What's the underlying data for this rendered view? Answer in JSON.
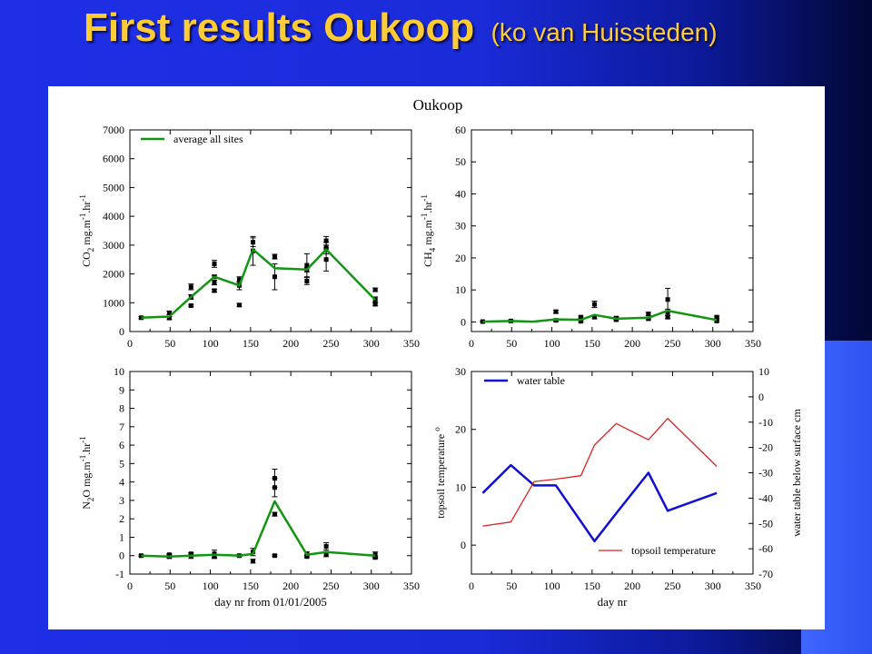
{
  "slide": {
    "title": "First results Oukoop",
    "subtitle": "(ko van Huissteden)"
  },
  "figure": {
    "title": "Oukoop"
  },
  "colors": {
    "average_line": "#119611",
    "water_table": "#1010d0",
    "topsoil_temp": "#dd2222",
    "markers": "#000000"
  },
  "chart_data": [
    {
      "id": "co2",
      "type": "line",
      "ylabel": "CO2 mg.m-1.hr-1",
      "ylabel_parts": {
        "pre": "CO",
        "sub": "2",
        "mid1": " mg.m",
        "sup1": "-1",
        "mid2": ".hr",
        "sup2": "-1"
      },
      "xlim": [
        0,
        350
      ],
      "ylim": [
        0,
        7000
      ],
      "xticks": [
        0,
        50,
        100,
        150,
        200,
        250,
        300,
        350
      ],
      "yticks": [
        0,
        1000,
        2000,
        3000,
        4000,
        5000,
        6000,
        7000
      ],
      "legend": {
        "position": "top-left",
        "label": "average all sites"
      },
      "series": [
        {
          "name": "average all sites",
          "x": [
            14,
            49,
            76,
            105,
            136,
            153,
            180,
            220,
            244,
            305
          ],
          "y": [
            480,
            520,
            1200,
            1900,
            1600,
            2850,
            2200,
            2150,
            2850,
            1100
          ]
        }
      ],
      "points": [
        {
          "x": 14,
          "y": 480,
          "err": 40
        },
        {
          "x": 49,
          "y": 470,
          "err": 50
        },
        {
          "x": 49,
          "y": 650,
          "err": 60
        },
        {
          "x": 76,
          "y": 1200,
          "err": 80
        },
        {
          "x": 76,
          "y": 1550,
          "err": 100
        },
        {
          "x": 76,
          "y": 900,
          "err": 40
        },
        {
          "x": 105,
          "y": 1900,
          "err": 60
        },
        {
          "x": 105,
          "y": 2350,
          "err": 120
        },
        {
          "x": 105,
          "y": 1700,
          "err": 80
        },
        {
          "x": 105,
          "y": 1420,
          "err": 50
        },
        {
          "x": 136,
          "y": 1800,
          "err": 100
        },
        {
          "x": 136,
          "y": 920,
          "err": 50
        },
        {
          "x": 136,
          "y": 1600,
          "err": 150
        },
        {
          "x": 153,
          "y": 3100,
          "err": 150
        },
        {
          "x": 153,
          "y": 2800,
          "err": 500
        },
        {
          "x": 180,
          "y": 2600,
          "err": 80
        },
        {
          "x": 180,
          "y": 1900,
          "err": 450
        },
        {
          "x": 220,
          "y": 2300,
          "err": 400
        },
        {
          "x": 220,
          "y": 1750,
          "err": 120
        },
        {
          "x": 220,
          "y": 2150,
          "err": 80
        },
        {
          "x": 244,
          "y": 3150,
          "err": 150
        },
        {
          "x": 244,
          "y": 2900,
          "err": 200
        },
        {
          "x": 244,
          "y": 2500,
          "err": 400
        },
        {
          "x": 305,
          "y": 1450,
          "err": 60
        },
        {
          "x": 305,
          "y": 1100,
          "err": 100
        },
        {
          "x": 305,
          "y": 950,
          "err": 60
        }
      ]
    },
    {
      "id": "ch4",
      "type": "line",
      "ylabel": "CH4 mg.m-1.hr-1",
      "ylabel_parts": {
        "pre": "CH",
        "sub": "4",
        "mid1": " mg.m",
        "sup1": "-1",
        "mid2": ".hr",
        "sup2": "-1"
      },
      "xlim": [
        0,
        350
      ],
      "ylim": [
        -3,
        60
      ],
      "xticks": [
        0,
        50,
        100,
        150,
        200,
        250,
        300,
        350
      ],
      "yticks": [
        0,
        10,
        20,
        30,
        40,
        50,
        60
      ],
      "series": [
        {
          "name": "average all sites",
          "x": [
            14,
            49,
            76,
            105,
            136,
            153,
            180,
            220,
            244,
            305
          ],
          "y": [
            0.1,
            0.3,
            0.1,
            0.8,
            0.7,
            2.2,
            1.0,
            1.3,
            3.5,
            0.6
          ]
        }
      ],
      "points": [
        {
          "x": 14,
          "y": 0.1,
          "err": 0.2
        },
        {
          "x": 49,
          "y": 0.3,
          "err": 0.3
        },
        {
          "x": 105,
          "y": 3.2,
          "err": 0.5
        },
        {
          "x": 105,
          "y": 0.5,
          "err": 0.3
        },
        {
          "x": 136,
          "y": 1.5,
          "err": 0.3
        },
        {
          "x": 136,
          "y": 0.2,
          "err": 0.3
        },
        {
          "x": 153,
          "y": 5.5,
          "err": 1.0
        },
        {
          "x": 153,
          "y": 1.5,
          "err": 0.5
        },
        {
          "x": 180,
          "y": 1.2,
          "err": 0.4
        },
        {
          "x": 180,
          "y": 0.7,
          "err": 0.3
        },
        {
          "x": 220,
          "y": 2.5,
          "err": 0.5
        },
        {
          "x": 220,
          "y": 1.0,
          "err": 0.3
        },
        {
          "x": 244,
          "y": 7.0,
          "err": 3.5
        },
        {
          "x": 244,
          "y": 3.0,
          "err": 1.0
        },
        {
          "x": 244,
          "y": 1.5,
          "err": 0.5
        },
        {
          "x": 305,
          "y": 1.5,
          "err": 0.3
        },
        {
          "x": 305,
          "y": 0.3,
          "err": 0.3
        }
      ]
    },
    {
      "id": "n2o",
      "type": "line",
      "xlabel": "day nr from 01/01/2005",
      "ylabel": "N2O mg.m-1.hr-1",
      "ylabel_parts": {
        "pre": "N",
        "sub": "2",
        "mid0": "O",
        "mid1": " mg.m",
        "sup1": "-1",
        "mid2": ".hr",
        "sup2": "-1"
      },
      "xlim": [
        0,
        350
      ],
      "ylim": [
        -1,
        10
      ],
      "xticks": [
        0,
        50,
        100,
        150,
        200,
        250,
        300,
        350
      ],
      "yticks": [
        -1,
        0,
        1,
        2,
        3,
        4,
        5,
        6,
        7,
        8,
        9,
        10
      ],
      "series": [
        {
          "name": "average all sites",
          "x": [
            14,
            49,
            76,
            105,
            136,
            153,
            180,
            220,
            244,
            305
          ],
          "y": [
            0.0,
            -0.05,
            0.0,
            0.05,
            0.0,
            0.1,
            2.95,
            0.05,
            0.2,
            0.0
          ]
        }
      ],
      "points": [
        {
          "x": 14,
          "y": 0.0,
          "err": 0.05
        },
        {
          "x": 49,
          "y": -0.05,
          "err": 0.1
        },
        {
          "x": 49,
          "y": 0.05,
          "err": 0.05
        },
        {
          "x": 76,
          "y": 0.0,
          "err": 0.15
        },
        {
          "x": 76,
          "y": 0.1,
          "err": 0.05
        },
        {
          "x": 105,
          "y": 0.1,
          "err": 0.2
        },
        {
          "x": 105,
          "y": -0.05,
          "err": 0.1
        },
        {
          "x": 136,
          "y": 0.0,
          "err": 0.05
        },
        {
          "x": 153,
          "y": 0.2,
          "err": 0.2
        },
        {
          "x": 153,
          "y": -0.3,
          "err": 0.1
        },
        {
          "x": 180,
          "y": 3.7,
          "err": 0.5
        },
        {
          "x": 180,
          "y": 4.2,
          "err": 0.5
        },
        {
          "x": 180,
          "y": 2.25,
          "err": 0.1
        },
        {
          "x": 180,
          "y": 0.0,
          "err": 0.05
        },
        {
          "x": 220,
          "y": 0.1,
          "err": 0.1
        },
        {
          "x": 220,
          "y": -0.05,
          "err": 0.05
        },
        {
          "x": 244,
          "y": 0.5,
          "err": 0.2
        },
        {
          "x": 244,
          "y": 0.05,
          "err": 0.1
        },
        {
          "x": 305,
          "y": 0.05,
          "err": 0.15
        },
        {
          "x": 305,
          "y": -0.1,
          "err": 0.05
        }
      ]
    },
    {
      "id": "temp_water",
      "type": "line",
      "xlabel": "day nr",
      "ylabel": "topsoil temperature °",
      "ylabel_parts": {
        "pre": "topsoil temperature ",
        "sup1": "o"
      },
      "y2label": "water table below surface cm",
      "xlim": [
        0,
        350
      ],
      "ylim": [
        -5,
        30
      ],
      "y2lim": [
        -70,
        10
      ],
      "xticks": [
        0,
        50,
        100,
        150,
        200,
        250,
        300,
        350
      ],
      "yticks": [
        0,
        10,
        20,
        30
      ],
      "y2ticks": [
        10,
        0,
        -10,
        -20,
        -30,
        -40,
        -50,
        -60,
        -70
      ],
      "legend": {
        "top_label": "water table",
        "bottom_label": "topsoil temperature"
      },
      "series": [
        {
          "name": "water table",
          "axis": "right",
          "x": [
            14,
            49,
            78,
            105,
            153,
            180,
            220,
            244,
            305
          ],
          "y": [
            -38,
            -27,
            -35,
            -35,
            -57,
            -46,
            -30,
            -45,
            -38
          ]
        },
        {
          "name": "topsoil temperature",
          "axis": "left",
          "x": [
            14,
            49,
            78,
            105,
            136,
            153,
            180,
            220,
            244,
            305
          ],
          "y": [
            3.3,
            4.0,
            11.0,
            11.4,
            12.0,
            17.3,
            21.0,
            18.2,
            21.9,
            13.6
          ]
        }
      ]
    }
  ]
}
